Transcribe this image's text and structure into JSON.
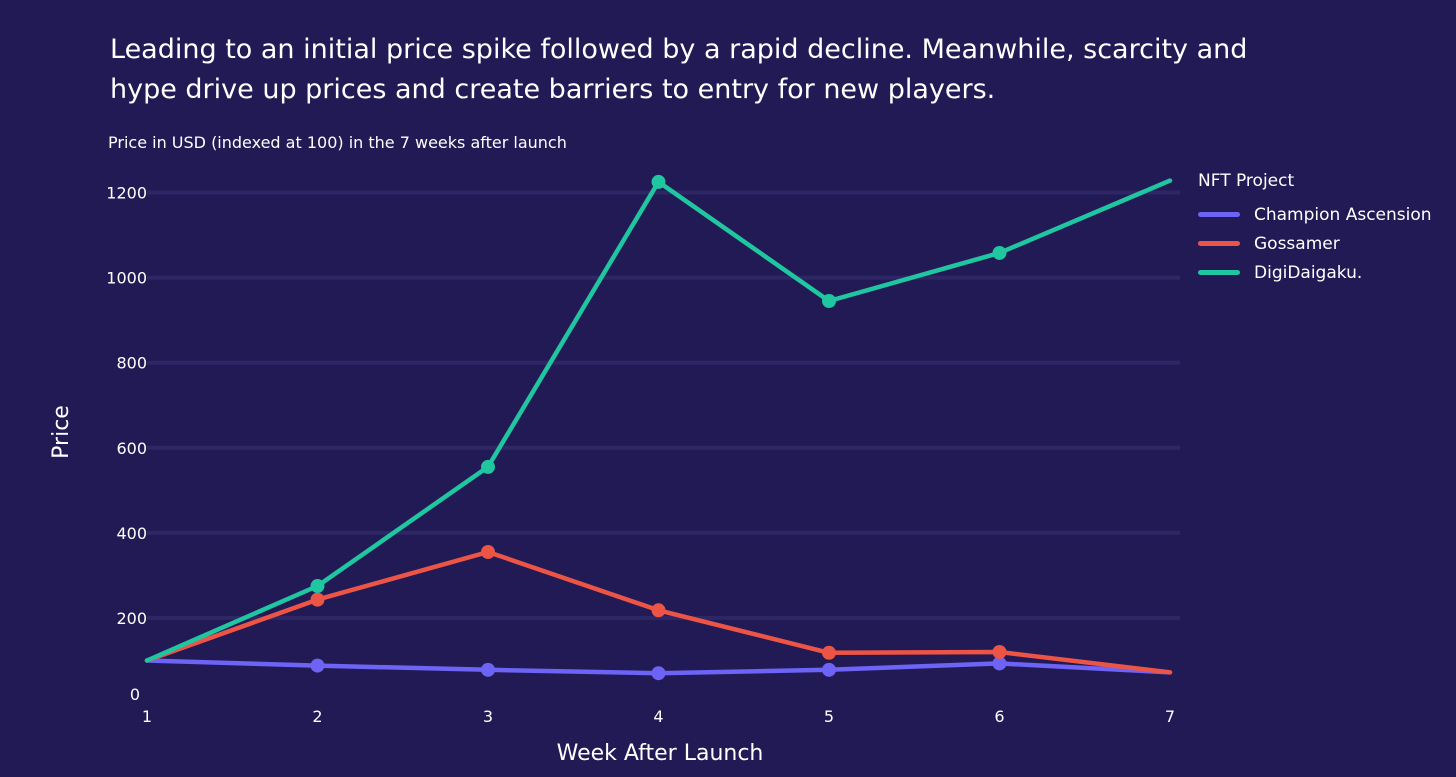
{
  "chart_data": {
    "type": "line",
    "title": "Leading to an initial price spike followed by a rapid decline. Meanwhile, scarcity and hype drive up prices and create barriers to entry for new players.",
    "subtitle": "Price in USD (indexed at 100) in the 7 weeks after launch",
    "xlabel": "Week After Launch",
    "ylabel": "Price",
    "x": [
      1,
      2,
      3,
      4,
      5,
      6,
      7
    ],
    "xlim": [
      1,
      7
    ],
    "ylim": [
      0,
      1300
    ],
    "yticks": [
      0,
      200,
      400,
      600,
      800,
      1000,
      1200
    ],
    "grid": true,
    "legend_title": "NFT Project",
    "legend_position": "top-right",
    "series": [
      {
        "name": "Champion Ascension",
        "color": "#6d63f5",
        "values": [
          100,
          88,
          78,
          70,
          78,
          93,
          72
        ]
      },
      {
        "name": "Gossamer",
        "color": "#ec5446",
        "values": [
          100,
          243,
          355,
          218,
          118,
          120,
          72
        ]
      },
      {
        "name": "DigiDaigaku.",
        "color": "#1fc6a0",
        "values": [
          100,
          275,
          555,
          1225,
          945,
          1058,
          1228
        ]
      }
    ]
  }
}
